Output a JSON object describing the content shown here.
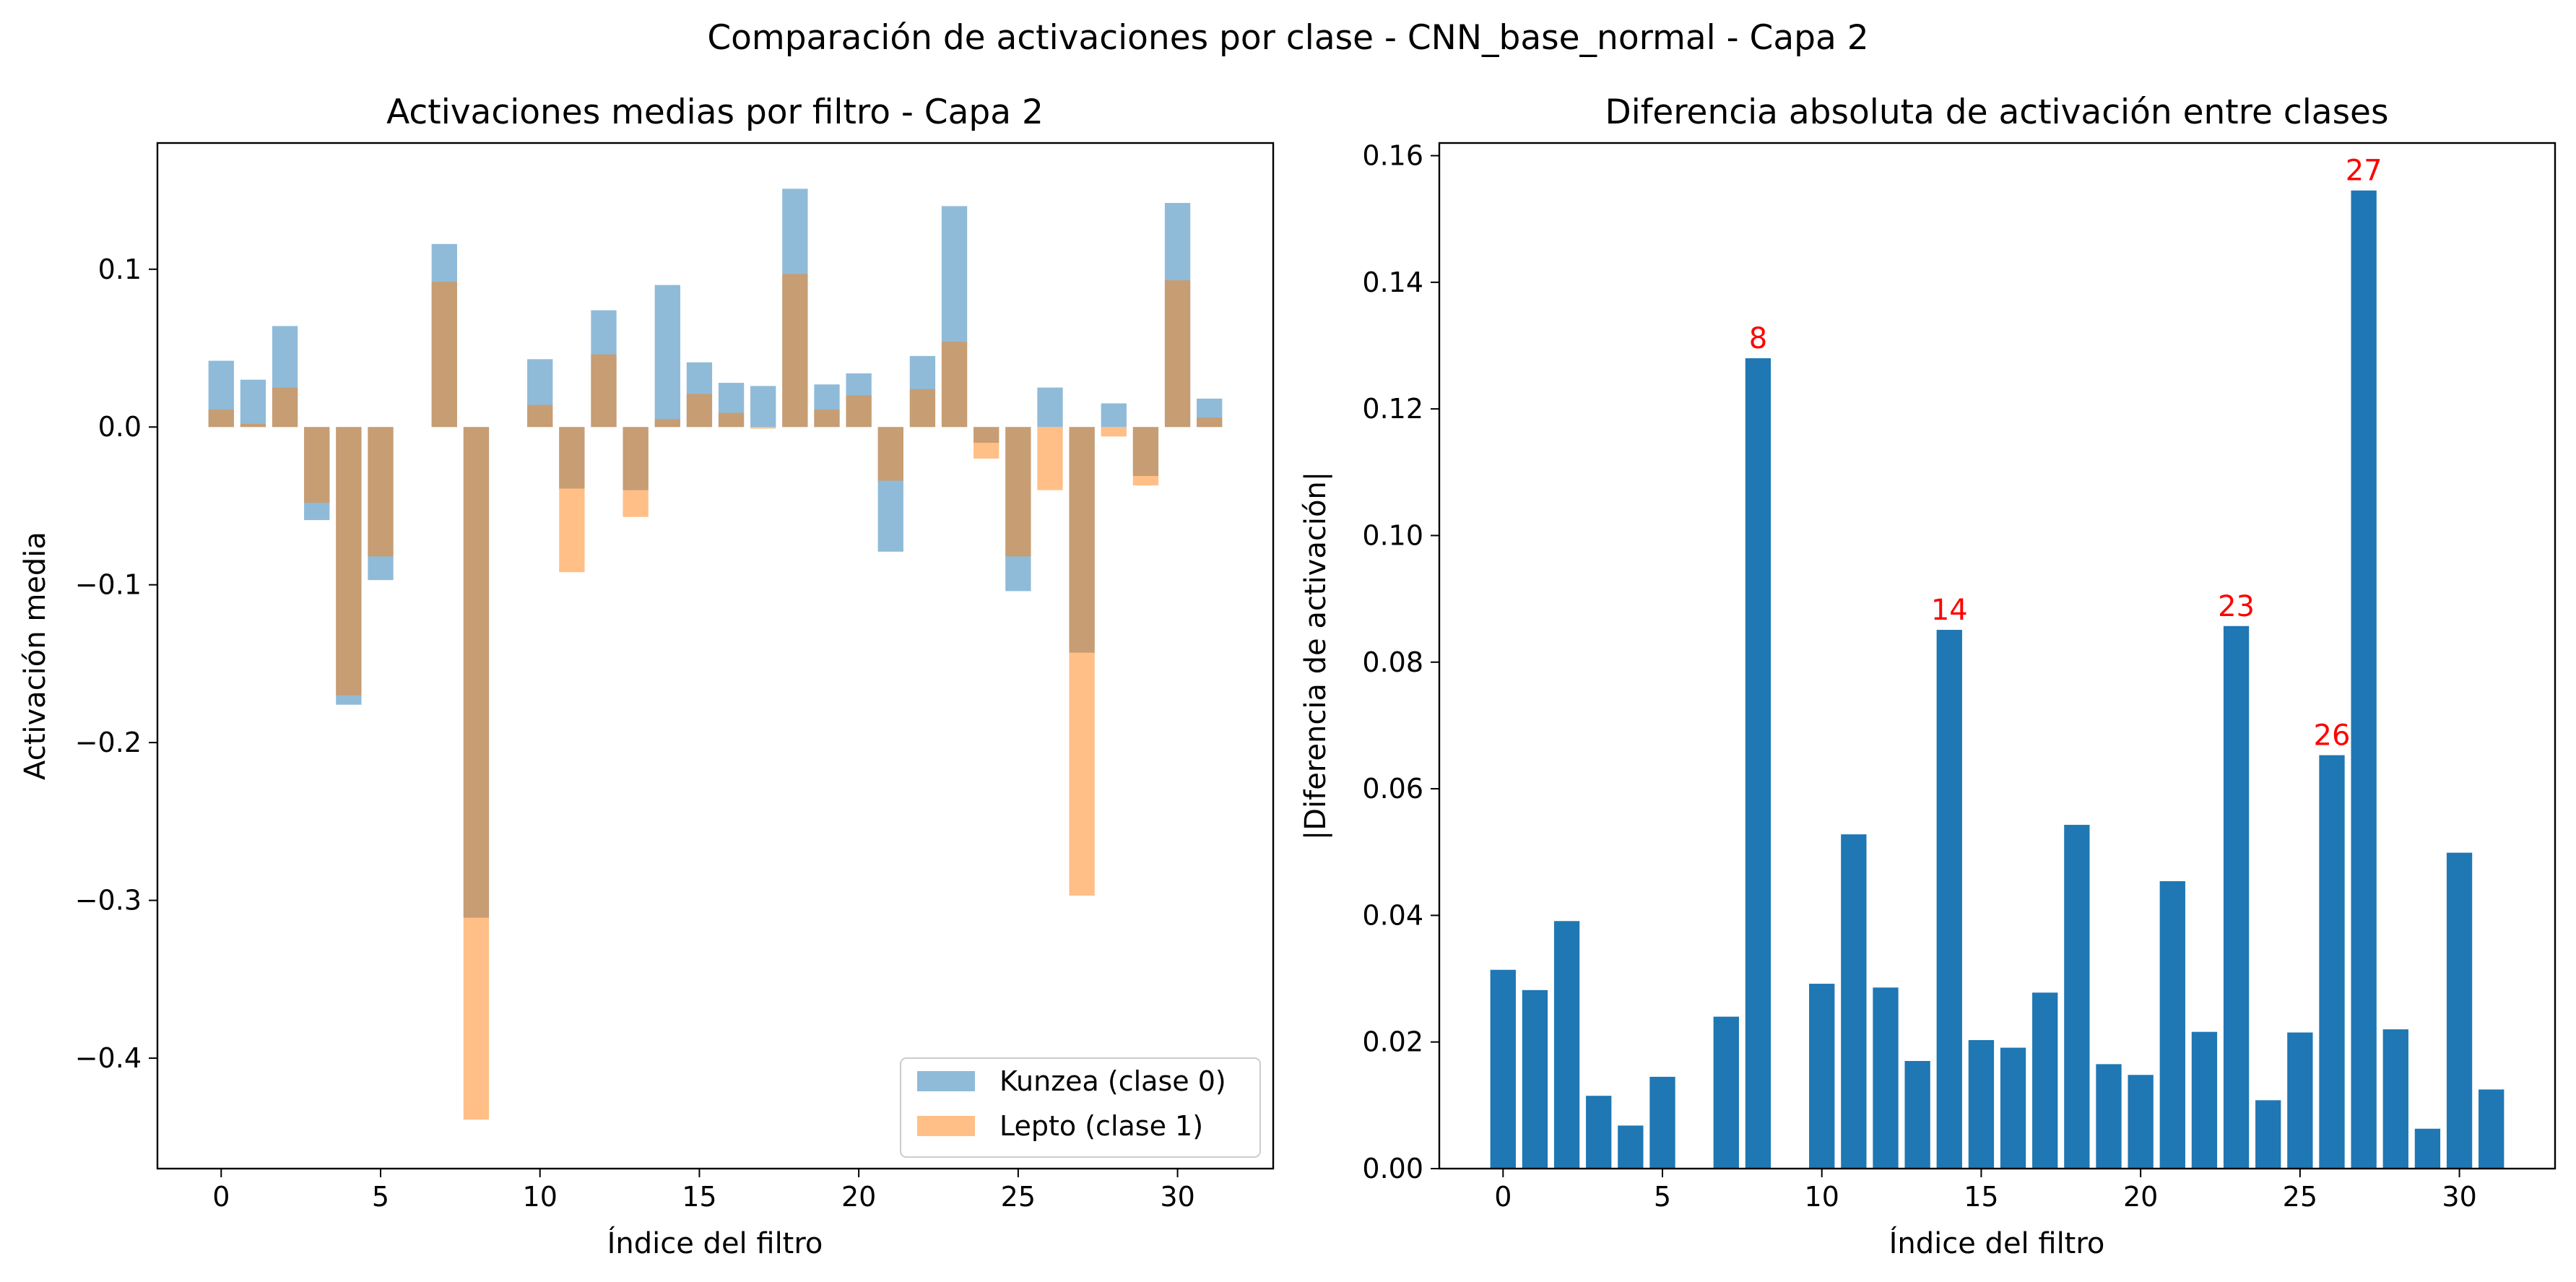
{
  "figure": {
    "suptitle": "Comparación de activaciones por clase - CNN_base_normal - Capa 2"
  },
  "chart_data": [
    {
      "type": "bar",
      "title": "Activaciones medias por filtro - Capa 2",
      "xlabel": "Índice del filtro",
      "ylabel": "Activación media",
      "xlim": [
        -2,
        33
      ],
      "ylim": [
        -0.47,
        0.18
      ],
      "xticks": [
        0,
        5,
        10,
        15,
        20,
        25,
        30
      ],
      "xtick_labels": [
        "0",
        "5",
        "10",
        "15",
        "20",
        "25",
        "30"
      ],
      "yticks": [
        -0.4,
        -0.3,
        -0.2,
        -0.1,
        0.0,
        0.1
      ],
      "ytick_labels": [
        "−0.4",
        "−0.3",
        "−0.2",
        "−0.1",
        "0.0",
        "0.1"
      ],
      "legend_position": "lower-right",
      "categories": [
        0,
        1,
        2,
        3,
        4,
        5,
        6,
        7,
        8,
        9,
        10,
        11,
        12,
        13,
        14,
        15,
        16,
        17,
        18,
        19,
        20,
        21,
        22,
        23,
        24,
        25,
        26,
        27,
        28,
        29,
        30,
        31
      ],
      "series": [
        {
          "name": "Kunzea (clase 0)",
          "color": "#1f77b4",
          "alpha": 0.5,
          "values": [
            0.042,
            0.03,
            0.064,
            -0.059,
            -0.176,
            -0.097,
            0.0,
            0.116,
            -0.311,
            0.0,
            0.043,
            -0.039,
            0.074,
            -0.04,
            0.09,
            0.041,
            0.028,
            0.026,
            0.151,
            0.027,
            0.034,
            -0.079,
            0.045,
            0.14,
            -0.01,
            -0.104,
            0.025,
            -0.143,
            0.015,
            -0.031,
            0.142,
            0.018
          ]
        },
        {
          "name": "Lepto (clase 1)",
          "color": "#ff7f0e",
          "alpha": 0.5,
          "values": [
            0.011,
            0.002,
            0.025,
            -0.048,
            -0.17,
            -0.082,
            0.0,
            0.092,
            -0.439,
            0.0,
            0.014,
            -0.092,
            0.046,
            -0.057,
            0.005,
            0.021,
            0.009,
            -0.001,
            0.097,
            0.011,
            0.02,
            -0.034,
            0.024,
            0.054,
            -0.02,
            -0.082,
            -0.04,
            -0.297,
            -0.006,
            -0.037,
            0.093,
            0.006
          ]
        }
      ]
    },
    {
      "type": "bar",
      "title": "Diferencia absoluta de activación entre clases",
      "xlabel": "Índice del filtro",
      "ylabel": "|Diferencia de activación|",
      "xlim": [
        -2,
        33
      ],
      "ylim": [
        0,
        0.162
      ],
      "xticks": [
        0,
        5,
        10,
        15,
        20,
        25,
        30
      ],
      "xtick_labels": [
        "0",
        "5",
        "10",
        "15",
        "20",
        "25",
        "30"
      ],
      "yticks": [
        0.0,
        0.02,
        0.04,
        0.06,
        0.08,
        0.1,
        0.12,
        0.14,
        0.16
      ],
      "ytick_labels": [
        "0.00",
        "0.02",
        "0.04",
        "0.06",
        "0.08",
        "0.10",
        "0.12",
        "0.14",
        "0.16"
      ],
      "color": "#1f77b4",
      "categories": [
        0,
        1,
        2,
        3,
        4,
        5,
        6,
        7,
        8,
        9,
        10,
        11,
        12,
        13,
        14,
        15,
        16,
        17,
        18,
        19,
        20,
        21,
        22,
        23,
        24,
        25,
        26,
        27,
        28,
        29,
        30,
        31
      ],
      "values": [
        0.0314,
        0.0282,
        0.0391,
        0.0115,
        0.0068,
        0.0145,
        0.0,
        0.024,
        0.128,
        0.0,
        0.0292,
        0.0528,
        0.0286,
        0.017,
        0.0851,
        0.0203,
        0.0191,
        0.0278,
        0.0543,
        0.0165,
        0.0148,
        0.0454,
        0.0216,
        0.0857,
        0.0108,
        0.0215,
        0.0653,
        0.1545,
        0.022,
        0.0063,
        0.0499,
        0.0125
      ],
      "annotations": [
        {
          "index": 8,
          "label": "8",
          "color": "#ff0000"
        },
        {
          "index": 14,
          "label": "14",
          "color": "#ff0000"
        },
        {
          "index": 23,
          "label": "23",
          "color": "#ff0000"
        },
        {
          "index": 26,
          "label": "26",
          "color": "#ff0000"
        },
        {
          "index": 27,
          "label": "27",
          "color": "#ff0000"
        }
      ]
    }
  ]
}
